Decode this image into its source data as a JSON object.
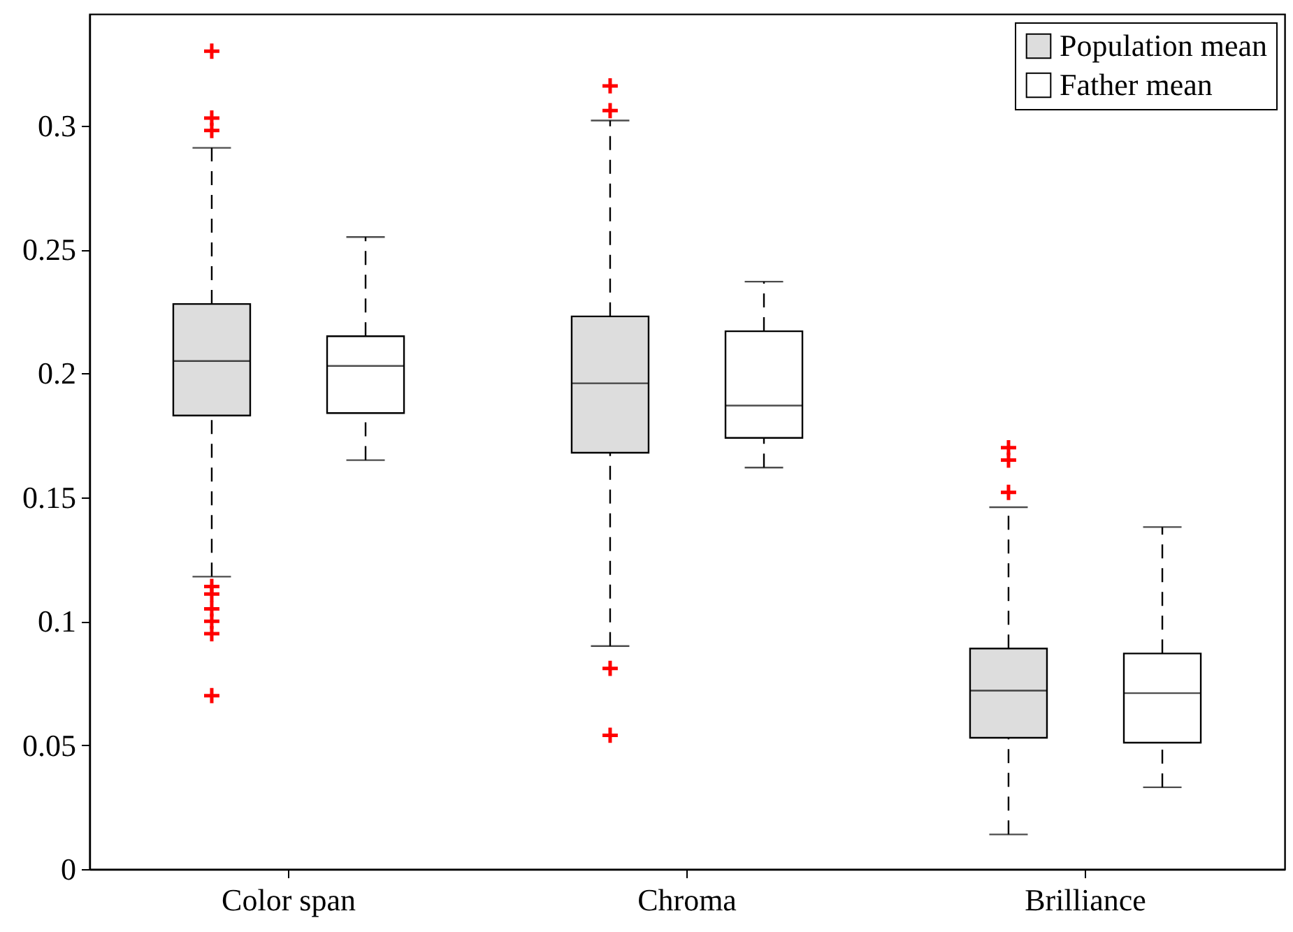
{
  "chart_data": {
    "type": "box",
    "categories": [
      "Color span",
      "Chroma",
      "Brilliance"
    ],
    "series": [
      {
        "name": "Population mean",
        "color": "#dddddd",
        "boxes": [
          {
            "low": 0.118,
            "q1": 0.183,
            "median": 0.205,
            "q3": 0.228,
            "high": 0.291,
            "outliers": [
              0.33,
              0.303,
              0.298,
              0.114,
              0.111,
              0.105,
              0.1,
              0.095,
              0.07
            ]
          },
          {
            "low": 0.09,
            "q1": 0.168,
            "median": 0.196,
            "q3": 0.223,
            "high": 0.302,
            "outliers": [
              0.316,
              0.306,
              0.081,
              0.054
            ]
          },
          {
            "low": 0.014,
            "q1": 0.053,
            "median": 0.072,
            "q3": 0.089,
            "high": 0.146,
            "outliers": [
              0.17,
              0.165,
              0.152
            ]
          }
        ]
      },
      {
        "name": "Father mean",
        "color": "#ffffff",
        "boxes": [
          {
            "low": 0.165,
            "q1": 0.184,
            "median": 0.203,
            "q3": 0.215,
            "high": 0.255
          },
          {
            "low": 0.162,
            "q1": 0.174,
            "median": 0.187,
            "q3": 0.217,
            "high": 0.237
          },
          {
            "low": 0.033,
            "q1": 0.051,
            "median": 0.071,
            "q3": 0.087,
            "high": 0.138
          }
        ]
      }
    ],
    "ylim": [
      0,
      0.345
    ],
    "yticks": [
      0,
      0.05,
      0.1,
      0.15,
      0.2,
      0.25,
      0.3
    ],
    "legend": "top right",
    "grid": false
  }
}
